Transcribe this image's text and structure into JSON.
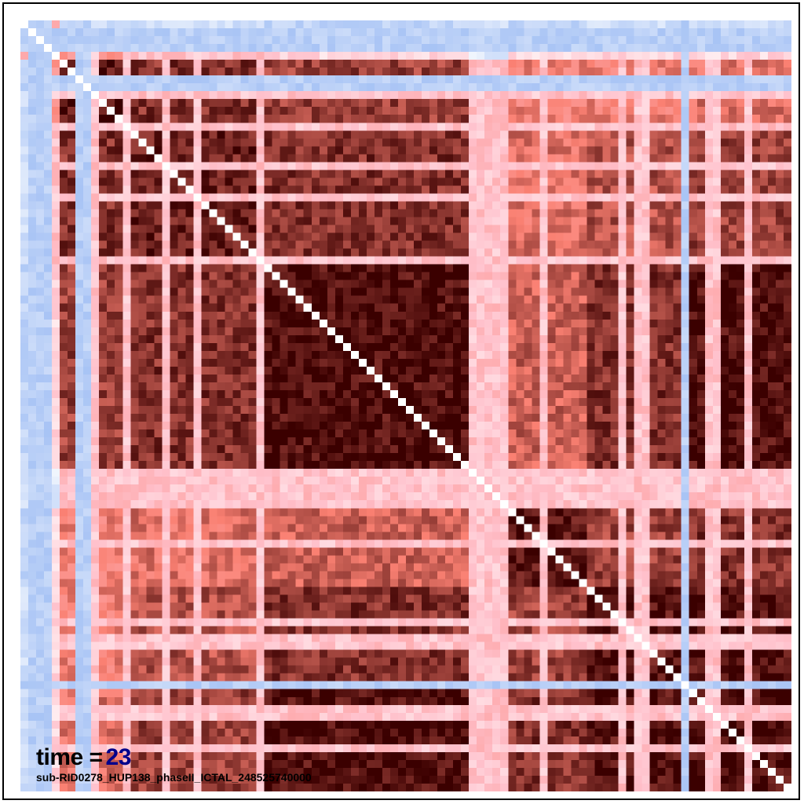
{
  "colors": {
    "negative": "#6495ed",
    "neutral": "#ffffff",
    "positive_mid": "#ffc0cb",
    "positive_high": "#fa8072",
    "positive_max": "#3b0000"
  },
  "caption": {
    "time_label": "time =",
    "time_value": "23",
    "subject_id": "sub-RID0278_HUP138_phaseII_ICTAL_248525740000"
  },
  "chart_data": {
    "type": "heatmap",
    "n_channels": 98,
    "value_range": [
      -1,
      1
    ],
    "diagonal": "white",
    "blocks": [
      {
        "name": "A",
        "start": 0,
        "end": 3
      },
      {
        "name": "B",
        "start": 3,
        "end": 5
      },
      {
        "name": "C",
        "start": 5,
        "end": 14
      },
      {
        "name": "D",
        "start": 14,
        "end": 31
      },
      {
        "name": "E",
        "start": 31,
        "end": 57
      },
      {
        "name": "F",
        "start": 57,
        "end": 62
      },
      {
        "name": "G",
        "start": 62,
        "end": 72
      },
      {
        "name": "H",
        "start": 72,
        "end": 84
      },
      {
        "name": "I",
        "start": 84,
        "end": 98
      }
    ],
    "block_values": [
      [
        0.5,
        0.3,
        -0.3,
        -0.3,
        -0.4,
        -0.3,
        -0.4,
        -0.3,
        -0.3
      ],
      [
        0.3,
        0.9,
        0.5,
        0.3,
        0.2,
        -0.2,
        0.2,
        0.2,
        0.2
      ],
      [
        -0.3,
        0.5,
        0.95,
        0.85,
        0.8,
        0.35,
        0.6,
        0.6,
        0.65
      ],
      [
        -0.3,
        0.3,
        0.85,
        0.9,
        0.85,
        0.35,
        0.65,
        0.75,
        0.8
      ],
      [
        -0.4,
        0.2,
        0.8,
        0.85,
        0.97,
        0.4,
        0.7,
        0.85,
        0.97
      ],
      [
        -0.3,
        -0.2,
        0.35,
        0.35,
        0.4,
        0.95,
        0.7,
        0.4,
        0.4
      ],
      [
        -0.4,
        0.2,
        0.6,
        0.65,
        0.7,
        0.7,
        0.95,
        0.8,
        0.85
      ],
      [
        -0.3,
        0.2,
        0.6,
        0.75,
        0.85,
        0.4,
        0.8,
        0.95,
        0.95
      ],
      [
        -0.3,
        0.2,
        0.65,
        0.8,
        0.97,
        0.4,
        0.85,
        0.95,
        0.98
      ]
    ],
    "negative_channels": [
      1,
      2,
      3,
      7,
      8,
      84
    ],
    "weak_channels": [
      9,
      13,
      18,
      22,
      30,
      57,
      58,
      59,
      60,
      61,
      66,
      76,
      78,
      79,
      87,
      88,
      92
    ],
    "grid": false,
    "legend": "none"
  }
}
